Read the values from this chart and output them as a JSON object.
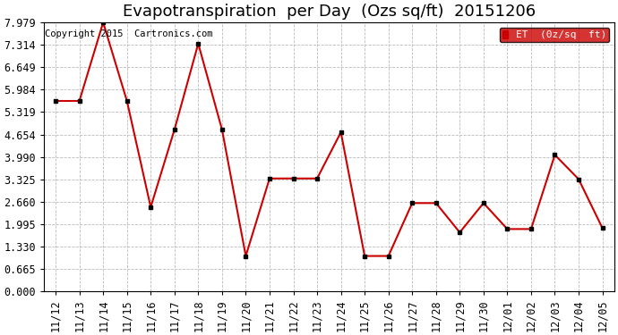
{
  "title": "Evapotranspiration  per Day  (Ozs sq/ft)  20151206",
  "copyright": "Copyright 2015  Cartronics.com",
  "legend_label": "ET  (0z/sq  ft)",
  "legend_bg": "#cc0000",
  "legend_text_color": "#ffffff",
  "x_labels": [
    "11/12",
    "11/13",
    "11/14",
    "11/15",
    "11/16",
    "11/17",
    "11/18",
    "11/19",
    "11/20",
    "11/21",
    "11/22",
    "11/23",
    "11/24",
    "11/25",
    "11/26",
    "11/27",
    "11/28",
    "11/29",
    "11/30",
    "12/01",
    "12/02",
    "12/03",
    "12/04",
    "12/05"
  ],
  "y_values": [
    5.65,
    5.65,
    7.98,
    5.65,
    2.5,
    4.8,
    7.35,
    4.8,
    1.05,
    3.35,
    3.35,
    3.35,
    4.72,
    1.05,
    1.05,
    2.62,
    2.62,
    1.75,
    2.62,
    1.85,
    1.85,
    4.05,
    3.33,
    1.88
  ],
  "line_color": "#cc0000",
  "marker_color": "#000000",
  "bg_color": "#ffffff",
  "grid_color": "#bbbbbb",
  "y_ticks": [
    0.0,
    0.665,
    1.33,
    1.995,
    2.66,
    3.325,
    3.99,
    4.654,
    5.319,
    5.984,
    6.649,
    7.314,
    7.979
  ],
  "ylim": [
    0.0,
    7.979
  ],
  "title_fontsize": 13,
  "copyright_fontsize": 7.5,
  "tick_fontsize": 8.5
}
